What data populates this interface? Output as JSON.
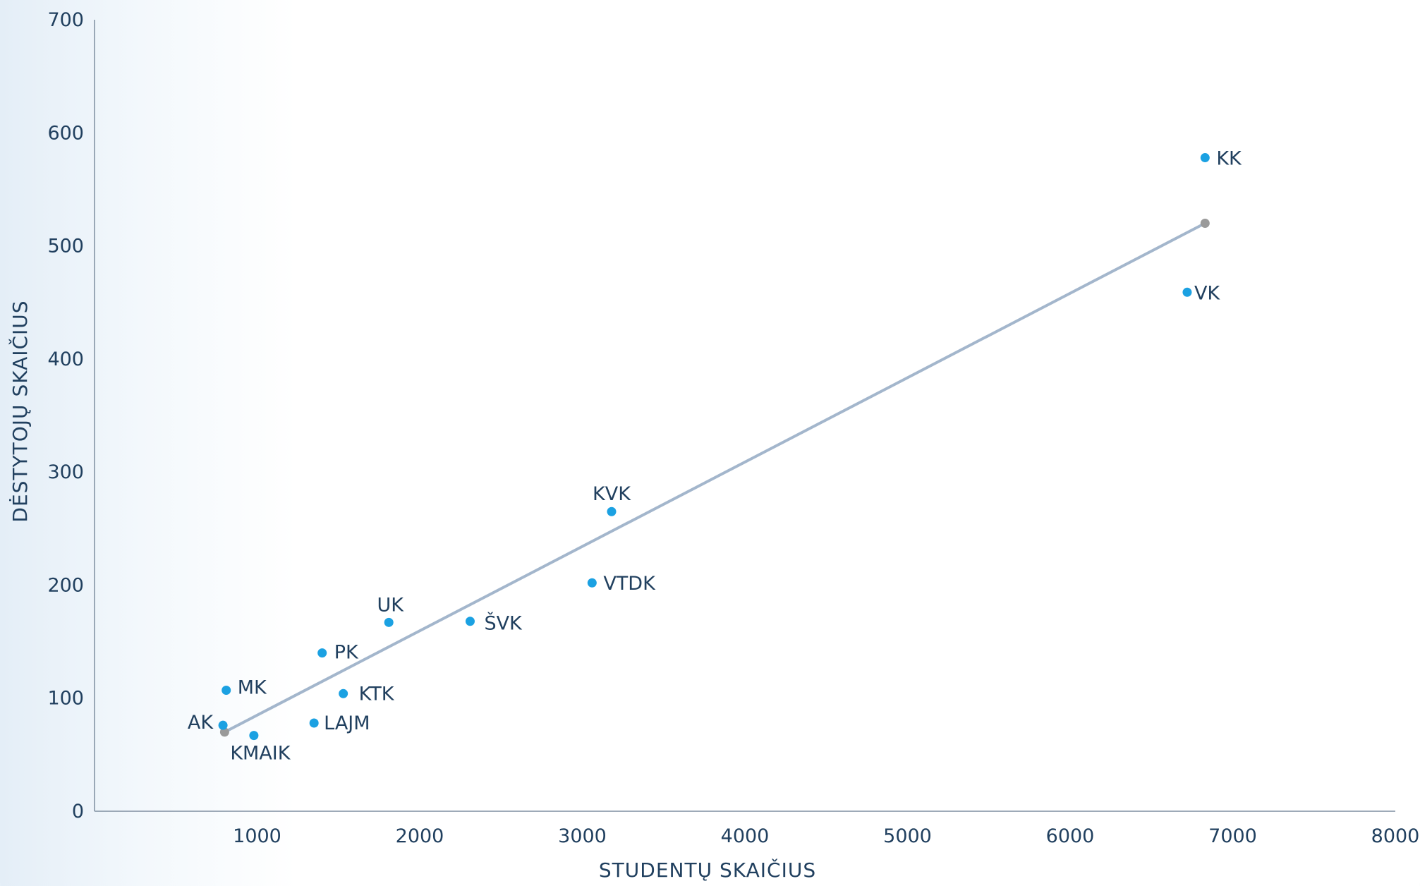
{
  "chart_data": {
    "type": "scatter",
    "xlabel": "STUDENTŲ SKAIČIUS",
    "ylabel": "DĖSTYTOJŲ SKAIČIUS",
    "xlim": [
      0,
      8000
    ],
    "ylim": [
      0,
      700
    ],
    "x_ticks": [
      1000,
      2000,
      3000,
      4000,
      5000,
      6000,
      7000,
      8000
    ],
    "y_ticks": [
      0,
      100,
      200,
      300,
      400,
      500,
      600,
      700
    ],
    "grid": false,
    "points": [
      {
        "label": "KK",
        "x": 6830,
        "y": 578
      },
      {
        "label": "VK",
        "x": 6720,
        "y": 459
      },
      {
        "label": "KVK",
        "x": 3180,
        "y": 265
      },
      {
        "label": "VTDK",
        "x": 3060,
        "y": 202
      },
      {
        "label": "ŠVK",
        "x": 2310,
        "y": 168
      },
      {
        "label": "UK",
        "x": 1810,
        "y": 167
      },
      {
        "label": "PK",
        "x": 1400,
        "y": 140
      },
      {
        "label": "KTK",
        "x": 1530,
        "y": 104
      },
      {
        "label": "MK",
        "x": 810,
        "y": 107
      },
      {
        "label": "LAJM",
        "x": 1350,
        "y": 78
      },
      {
        "label": "AK",
        "x": 790,
        "y": 76
      },
      {
        "label": "KMAIK",
        "x": 980,
        "y": 67
      }
    ],
    "trendline": {
      "start": {
        "x": 800,
        "y": 70
      },
      "end": {
        "x": 6830,
        "y": 520
      }
    },
    "colors": {
      "points": "#1ba1e2",
      "trendline": "#a3b6cc",
      "trend_endpoints": "#9a9a9a",
      "text": "#21405f",
      "axis": "#7f8ea0"
    }
  }
}
